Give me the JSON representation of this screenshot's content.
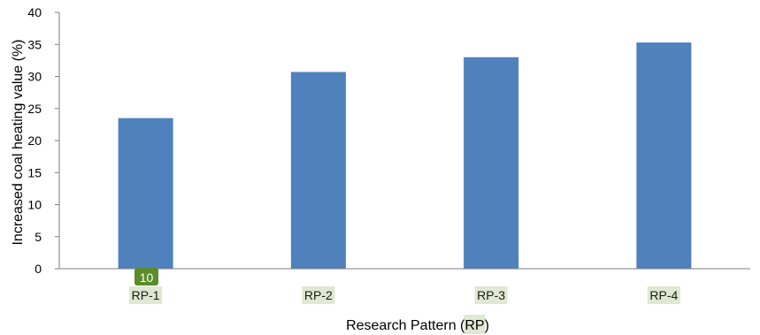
{
  "chart_data": {
    "type": "bar",
    "categories": [
      "RP-1",
      "RP-2",
      "RP-3",
      "RP-4"
    ],
    "values": [
      23.5,
      30.7,
      33.0,
      35.3
    ],
    "xlabel": "Research Pattern (RP)",
    "ylabel": "Increased coal heating  value (%)",
    "ylim": [
      0,
      40
    ],
    "yticks": [
      0,
      5,
      10,
      15,
      20,
      25,
      30,
      35,
      40
    ],
    "grid": false,
    "legend": "none",
    "annotation": "10",
    "colors": {
      "bar": "#4f81bd",
      "axis": "#7f7f7f",
      "label_highlight": "#dfe8d2",
      "annotation_badge": "#5b8c2a",
      "annotation_text": "#ffffff"
    }
  }
}
